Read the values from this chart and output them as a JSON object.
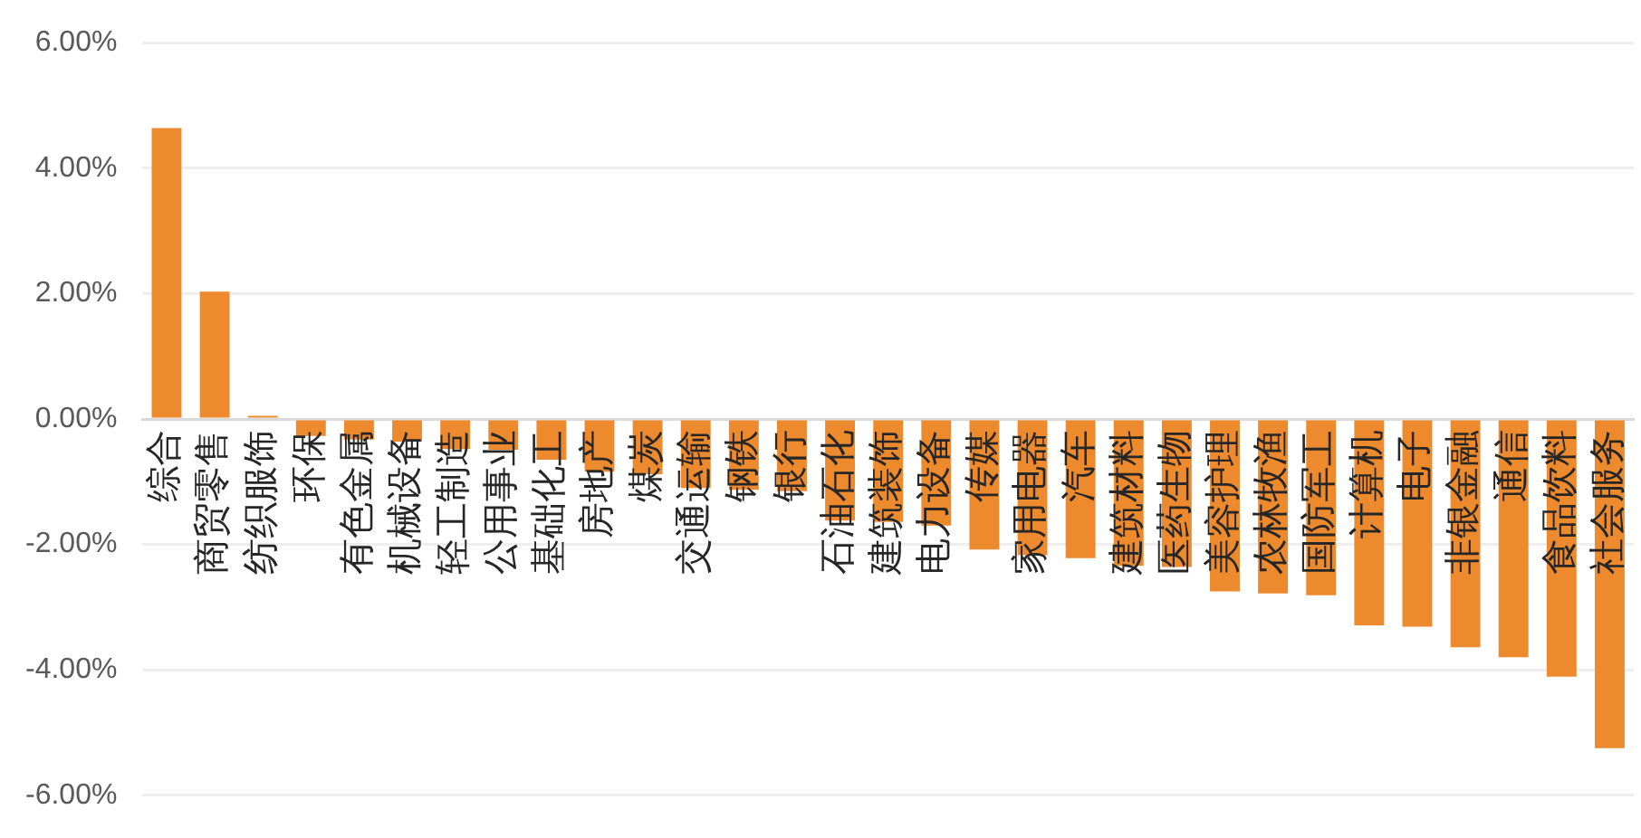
{
  "chart_data": {
    "type": "bar",
    "categories": [
      "综合",
      "商贸零售",
      "纺织服饰",
      "环保",
      "有色金属",
      "机械设备",
      "轻工制造",
      "公用事业",
      "基础化工",
      "房地产",
      "煤炭",
      "交通运输",
      "钢铁",
      "银行",
      "石油石化",
      "建筑装饰",
      "电力设备",
      "传媒",
      "家用电器",
      "汽车",
      "建筑材料",
      "医药生物",
      "美容护理",
      "农林牧渔",
      "国防军工",
      "计算机",
      "电子",
      "非银金融",
      "通信",
      "食品饮料",
      "社会服务"
    ],
    "values": [
      4.64,
      2.03,
      0.05,
      -0.27,
      -0.33,
      -0.36,
      -0.48,
      -0.49,
      -0.65,
      -0.84,
      -0.88,
      -1.1,
      -1.13,
      -1.15,
      -1.62,
      -1.64,
      -1.7,
      -2.08,
      -2.17,
      -2.22,
      -2.34,
      -2.36,
      -2.75,
      -2.78,
      -2.81,
      -3.29,
      -3.31,
      -3.64,
      -3.8,
      -4.11,
      -5.25
    ],
    "color": "#ed8a2e",
    "ylim": [
      -6,
      6
    ],
    "yticks": [
      {
        "value": -6,
        "label": "-6.00%"
      },
      {
        "value": -4,
        "label": "-4.00%"
      },
      {
        "value": -2,
        "label": "-2.00%"
      },
      {
        "value": 0,
        "label": "0.00%"
      },
      {
        "value": 2,
        "label": "2.00%"
      },
      {
        "value": 4,
        "label": "4.00%"
      },
      {
        "value": 6,
        "label": "6.00%"
      }
    ],
    "grid": "y",
    "legend": false
  }
}
